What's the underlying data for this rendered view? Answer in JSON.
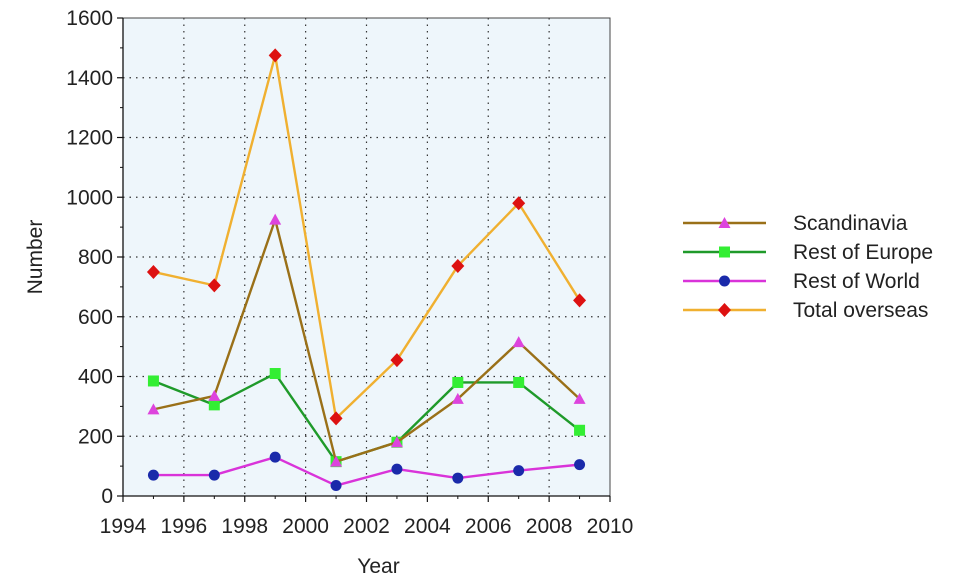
{
  "chart_data": {
    "type": "line",
    "title": "",
    "xlabel": "Year",
    "ylabel": "Number",
    "xlim": [
      1994,
      2010
    ],
    "ylim": [
      0,
      1600
    ],
    "xticks": [
      1994,
      1996,
      1998,
      2000,
      2002,
      2004,
      2006,
      2008,
      2010
    ],
    "yticks": [
      0,
      200,
      400,
      600,
      800,
      1000,
      1200,
      1400,
      1600
    ],
    "grid": true,
    "legend_position": "right",
    "plot_background": "#eef6fb",
    "x": [
      1995,
      1997,
      1999,
      2001,
      2003,
      2005,
      2007,
      2009
    ],
    "series": [
      {
        "name": "Scandinavia",
        "values": [
          290,
          335,
          925,
          115,
          180,
          325,
          515,
          325
        ],
        "line_color": "#9a7018",
        "marker": "triangle",
        "marker_color": "#dd44dd"
      },
      {
        "name": "Rest of Europe",
        "values": [
          385,
          305,
          410,
          115,
          180,
          380,
          380,
          220
        ],
        "line_color": "#1f9a2a",
        "marker": "square",
        "marker_color": "#33ee33"
      },
      {
        "name": "Rest of World",
        "values": [
          70,
          70,
          130,
          35,
          90,
          60,
          85,
          105
        ],
        "line_color": "#d933d9",
        "marker": "circle",
        "marker_color": "#1a2aaa"
      },
      {
        "name": "Total overseas",
        "values": [
          750,
          705,
          1475,
          260,
          455,
          770,
          980,
          655
        ],
        "line_color": "#f0b030",
        "marker": "diamond",
        "marker_color": "#dd1111"
      }
    ]
  }
}
